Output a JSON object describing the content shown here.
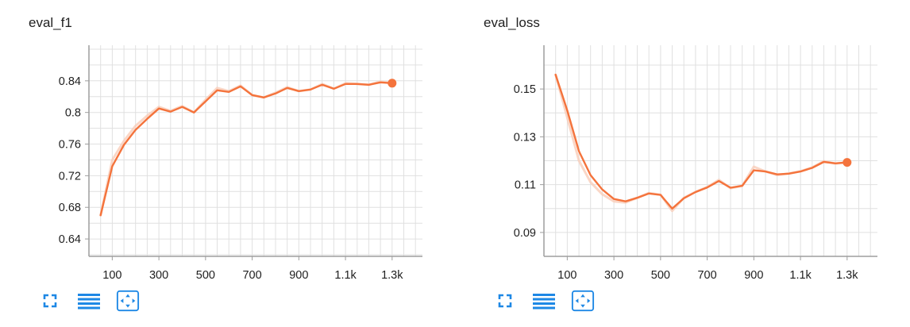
{
  "colors": {
    "line": "#f4733c",
    "line_raw": "#f9cdb9",
    "grid": "#e0e0e0",
    "axis": "#9e9e9e",
    "icon": "#1e88e5"
  },
  "toolbar": {
    "icons": [
      "fullscreen-icon",
      "data-table-icon",
      "fit-domain-icon"
    ]
  },
  "chart_data": [
    {
      "type": "line",
      "title": "eval_f1",
      "xlabel": "",
      "ylabel": "",
      "x_ticks": [
        100,
        300,
        500,
        700,
        900,
        1100,
        1300
      ],
      "x_tick_labels": [
        "100",
        "300",
        "500",
        "700",
        "900",
        "1.1k",
        "1.3k"
      ],
      "y_ticks": [
        0.64,
        0.68,
        0.72,
        0.76,
        0.8,
        0.84
      ],
      "y_tick_labels": [
        "0.64",
        "0.68",
        "0.72",
        "0.76",
        "0.8",
        "0.84"
      ],
      "xlim": [
        0,
        1430
      ],
      "ylim": [
        0.618,
        0.885
      ],
      "grid": true,
      "series": [
        {
          "x": [
            50,
            100,
            150,
            200,
            250,
            300,
            350,
            400,
            450,
            500,
            550,
            600,
            650,
            700,
            750,
            800,
            850,
            900,
            950,
            1000,
            1050,
            1100,
            1150,
            1200,
            1250,
            1300
          ],
          "smoothed": [
            0.67,
            0.732,
            0.759,
            0.778,
            0.792,
            0.805,
            0.801,
            0.807,
            0.8,
            0.814,
            0.828,
            0.826,
            0.833,
            0.822,
            0.819,
            0.824,
            0.831,
            0.827,
            0.829,
            0.835,
            0.83,
            0.836,
            0.836,
            0.835,
            0.838,
            0.837
          ],
          "raw": [
            0.67,
            0.74,
            0.764,
            0.783,
            0.796,
            0.807,
            0.802,
            0.808,
            0.8,
            0.816,
            0.831,
            0.827,
            0.834,
            0.822,
            0.819,
            0.825,
            0.832,
            0.827,
            0.829,
            0.836,
            0.83,
            0.837,
            0.836,
            0.835,
            0.839,
            0.837
          ]
        }
      ]
    },
    {
      "type": "line",
      "title": "eval_loss",
      "xlabel": "",
      "ylabel": "",
      "x_ticks": [
        100,
        300,
        500,
        700,
        900,
        1100,
        1300
      ],
      "x_tick_labels": [
        "100",
        "300",
        "500",
        "700",
        "900",
        "1.1k",
        "1.3k"
      ],
      "y_ticks": [
        0.09,
        0.11,
        0.13,
        0.15
      ],
      "y_tick_labels": [
        "0.09",
        "0.11",
        "0.13",
        "0.15"
      ],
      "xlim": [
        0,
        1430
      ],
      "ylim": [
        0.08,
        0.1683
      ],
      "grid": true,
      "series": [
        {
          "x": [
            50,
            100,
            150,
            200,
            250,
            300,
            350,
            400,
            450,
            500,
            550,
            600,
            650,
            700,
            750,
            800,
            850,
            900,
            950,
            1000,
            1050,
            1100,
            1150,
            1200,
            1250,
            1300
          ],
          "smoothed": [
            0.156,
            0.141,
            0.124,
            0.114,
            0.108,
            0.104,
            0.103,
            0.1045,
            0.1063,
            0.1057,
            0.1,
            0.1043,
            0.1069,
            0.1088,
            0.1115,
            0.1087,
            0.1095,
            0.116,
            0.1155,
            0.1143,
            0.1146,
            0.1155,
            0.117,
            0.1195,
            0.1189,
            0.1193
          ],
          "raw": [
            0.156,
            0.138,
            0.12,
            0.111,
            0.106,
            0.103,
            0.1025,
            0.1045,
            0.1065,
            0.1058,
            0.099,
            0.1045,
            0.107,
            0.109,
            0.112,
            0.1085,
            0.1095,
            0.1175,
            0.1155,
            0.114,
            0.1147,
            0.1156,
            0.1172,
            0.1198,
            0.1188,
            0.1193
          ]
        }
      ]
    }
  ]
}
